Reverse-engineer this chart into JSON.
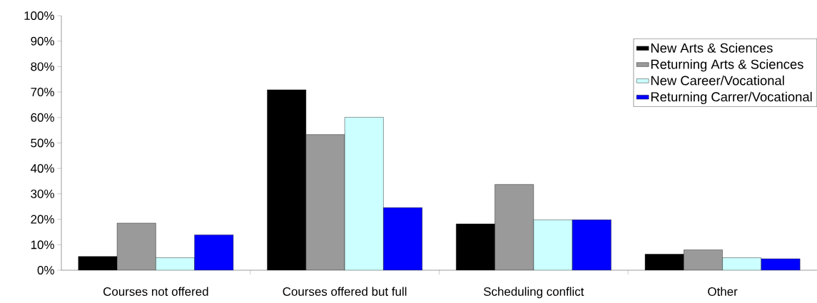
{
  "chart_data": {
    "type": "bar",
    "categories": [
      "Courses not offered",
      "Courses offered but full",
      "Scheduling conflict",
      "Other"
    ],
    "series": [
      {
        "name": "New Arts & Sciences",
        "color": "#000000",
        "values": [
          5.4,
          70.9,
          18.2,
          6.3
        ]
      },
      {
        "name": "Returning Arts & Sciences",
        "color": "#9a9a9a",
        "values": [
          18.5,
          53.3,
          33.7,
          8.0
        ]
      },
      {
        "name": "New Career/Vocational",
        "color": "#ccffff",
        "values": [
          4.9,
          60.1,
          19.8,
          4.9
        ]
      },
      {
        "name": "Returning Carrer/Vocational",
        "color": "#0000ff",
        "values": [
          13.9,
          24.6,
          19.8,
          4.5
        ]
      }
    ],
    "ylim": [
      0,
      100
    ],
    "yticks": [
      {
        "value": 0,
        "label": "0%"
      },
      {
        "value": 10,
        "label": "10%"
      },
      {
        "value": 20,
        "label": "20%"
      },
      {
        "value": 30,
        "label": "30%"
      },
      {
        "value": 40,
        "label": "40%"
      },
      {
        "value": 50,
        "label": "50%"
      },
      {
        "value": 60,
        "label": "60%"
      },
      {
        "value": 70,
        "label": "70%"
      },
      {
        "value": 80,
        "label": "80%"
      },
      {
        "value": 90,
        "label": "90%"
      },
      {
        "value": 100,
        "label": "100%"
      }
    ],
    "grid": false,
    "legend": "top right"
  }
}
